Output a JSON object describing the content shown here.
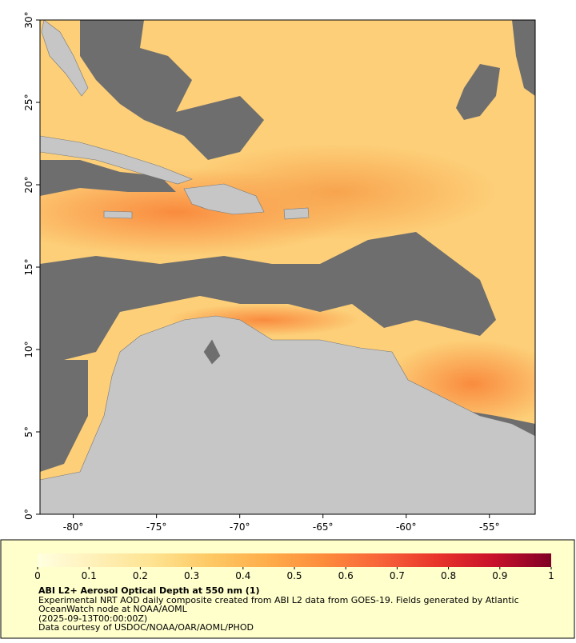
{
  "map": {
    "xaxis": {
      "lim": [
        -82,
        -52.25
      ],
      "ticks": [
        {
          "value": -80,
          "label": "-80°"
        },
        {
          "value": -75,
          "label": "-75°"
        },
        {
          "value": -70,
          "label": "-70°"
        },
        {
          "value": -65,
          "label": "-65°"
        },
        {
          "value": -60,
          "label": "-60°"
        },
        {
          "value": -55,
          "label": "-55°"
        }
      ]
    },
    "yaxis": {
      "lim": [
        0,
        30
      ],
      "ticks": [
        {
          "value": 0,
          "label": "0°"
        },
        {
          "value": 5,
          "label": "5°"
        },
        {
          "value": 10,
          "label": "10°"
        },
        {
          "value": 15,
          "label": "15°"
        },
        {
          "value": 20,
          "label": "20°"
        },
        {
          "value": 25,
          "label": "25°"
        },
        {
          "value": 30,
          "label": "30°"
        }
      ]
    }
  },
  "colorbar": {
    "lim": [
      0,
      1
    ],
    "ticks": [
      0,
      0.1,
      0.2,
      0.3,
      0.4,
      0.5,
      0.6,
      0.7,
      0.8,
      0.9,
      1
    ],
    "colors": [
      "#ffffe0",
      "#fff0b8",
      "#fee391",
      "#fec965",
      "#feae4a",
      "#fd8c3c",
      "#f8643a",
      "#e8342b",
      "#c8102b",
      "#800026"
    ]
  },
  "caption": {
    "title": "ABI L2+ Aerosol Optical Depth at 550 nm (1)",
    "description": "Experimental NRT AOD daily composite created from ABI L2 data from GOES-19. Fields generated by Atlantic OceanWatch node at NOAA/AOML",
    "time": "(2025-09-13T00:00:00Z)",
    "credit": "Data courtesy of USDOC/NOAA/OAR/AOML/PHOD"
  }
}
